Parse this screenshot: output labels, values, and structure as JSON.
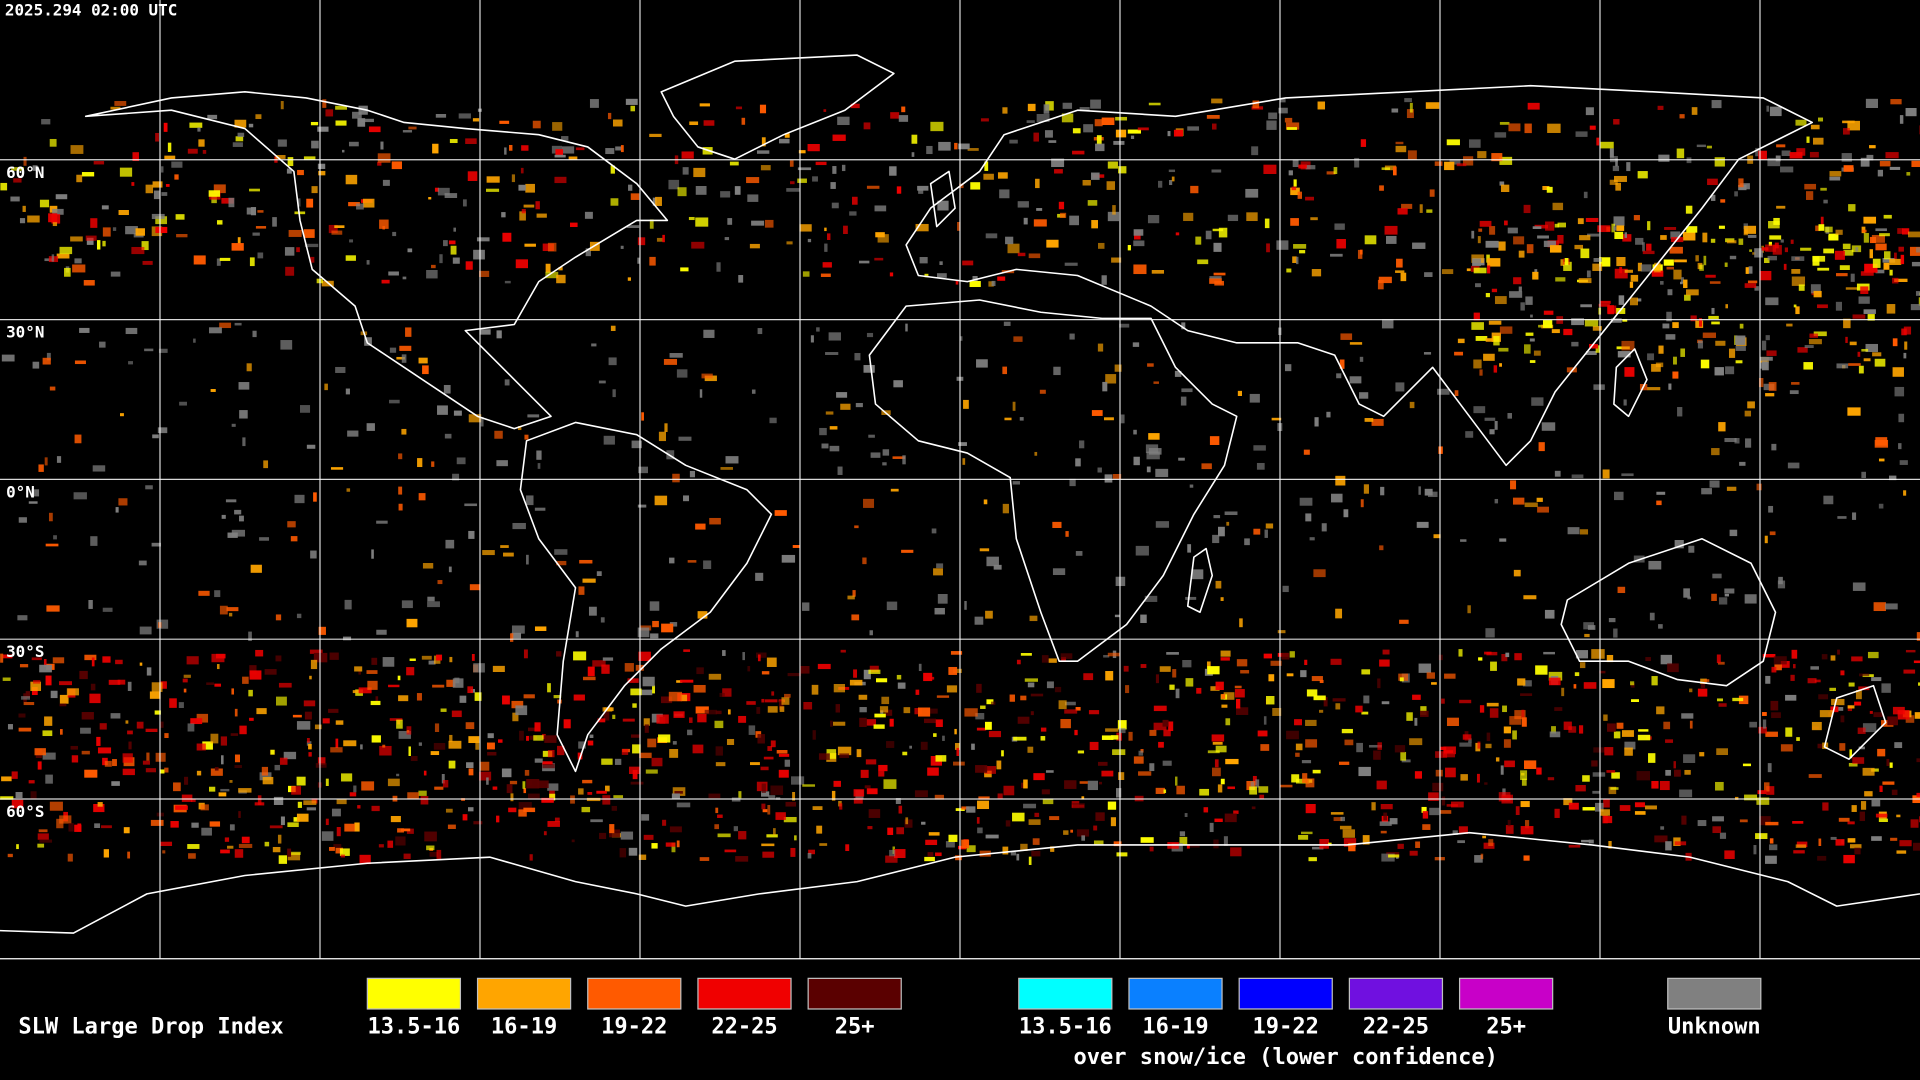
{
  "timestamp": "2025.294 02:00 UTC",
  "latitude_labels": [
    "60°N",
    "30°N",
    "0°N",
    "30°S",
    "60°S"
  ],
  "legend": {
    "title": "SLW Large Drop Index",
    "groups": [
      {
        "items": [
          {
            "label": "13.5-16",
            "color": "#ffff00"
          },
          {
            "label": "16-19",
            "color": "#ffa500"
          },
          {
            "label": "19-22",
            "color": "#ff5a00"
          },
          {
            "label": "22-25",
            "color": "#f00000"
          },
          {
            "label": "25+",
            "color": "#5a0000"
          }
        ]
      },
      {
        "caption": "over snow/ice (lower confidence)",
        "items": [
          {
            "label": "13.5-16",
            "color": "#00ffff"
          },
          {
            "label": "16-19",
            "color": "#0a80ff"
          },
          {
            "label": "19-22",
            "color": "#0000ff"
          },
          {
            "label": "22-25",
            "color": "#7010e0"
          },
          {
            "label": "25+",
            "color": "#c800c8"
          }
        ]
      },
      {
        "items": [
          {
            "label": "Unknown",
            "color": "#808080"
          }
        ]
      }
    ]
  }
}
